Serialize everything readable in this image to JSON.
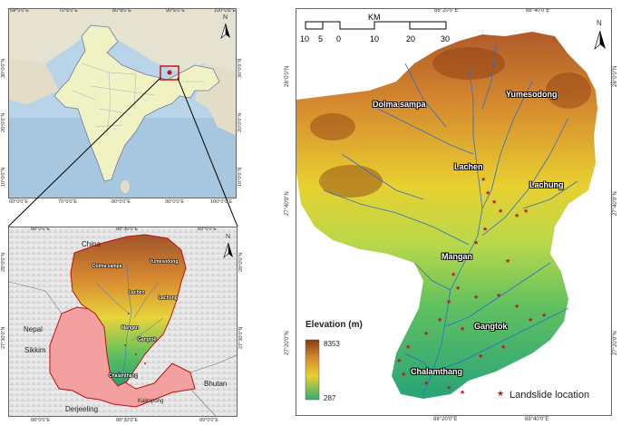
{
  "inset_india": {
    "top_labels": [
      "60°0'0\"E",
      "70°0'0\"E",
      "80°0'0\"E",
      "90°0'0\"E",
      "100°0'0\"E"
    ],
    "bottom_labels": [
      "60°0'0\"E",
      "70°0'0\"E",
      "80°0'0\"E",
      "90°0'0\"E",
      "100°0'0\"E"
    ],
    "left_labels": [
      "30°0'0\"N",
      "20°0'0\"N",
      "10°0'0\"N"
    ],
    "right_labels": [
      "30°0'0\"N",
      "20°0'0\"N",
      "10°0'0\"N"
    ],
    "north": "N"
  },
  "inset_sikkim": {
    "top_labels": [
      "88°0'0\"E",
      "88°30'0\"E",
      "89°0'0\"E"
    ],
    "bottom_labels": [
      "88°0'0\"E",
      "88°30'0\"E",
      "89°0'0\"E"
    ],
    "left_labels": [
      "28°0'0\"N",
      "27°30'0\"N"
    ],
    "right_labels": [
      "28°0'0\"N",
      "27°30'0\"N"
    ],
    "north": "N",
    "regions": {
      "china": "China",
      "nepal": "Nepal",
      "sikkim": "Sikkim",
      "bhutan": "Bhutan",
      "derjeeling": "Derjeeling",
      "kalimpong": "Kalimpong"
    },
    "places": {
      "dolma": "Dolma sampa",
      "yumesodong": "Yumesodong",
      "lachen": "Lachen",
      "lachung": "Lachung",
      "mangan": "Mangan",
      "gangtok": "Gangtok",
      "chalamthang": "Chalamthang"
    }
  },
  "main_map": {
    "top_labels": [
      "88°20'0\"E",
      "88°40'0\"E"
    ],
    "bottom_labels": [
      "88°20'0\"E",
      "88°40'0\"E"
    ],
    "left_labels": [
      "28°0'0\"N",
      "27°40'0\"N",
      "27°20'0\"N"
    ],
    "right_labels": [
      "28°0'0\"N",
      "27°40'0\"N",
      "27°20'0\"N"
    ],
    "north": "N",
    "scale": {
      "unit": "KM",
      "ticks": [
        "10",
        "5",
        "0",
        "10",
        "20",
        "30"
      ]
    },
    "places": {
      "dolma": "Dolma sampa",
      "yumesodong": "Yumesodong",
      "lachen": "Lachen",
      "lachung": "Lachung",
      "mangan": "Mangan",
      "gangtok": "Gangtok",
      "chalamthang": "Chalamthang"
    },
    "legend": {
      "title": "Elevation (m)",
      "max": "8353",
      "min": "287",
      "landslide_label": "Landslide location"
    },
    "colors": {
      "high": "#8a3a12",
      "mid": "#e8d030",
      "low": "#30b070",
      "river": "#2a6fd0",
      "landslide": "#b02020"
    }
  }
}
